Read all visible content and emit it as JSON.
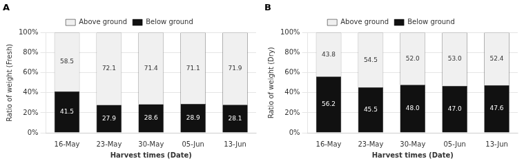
{
  "chart_data": [
    {
      "type": "bar",
      "title": "A",
      "stacked": true,
      "grid": true,
      "legend": "top",
      "data_labels": true,
      "xlabel": "Harvest times (Date)",
      "ylabel": "Ratio of weight (Fresh)",
      "categories": [
        "16-May",
        "23-May",
        "30-May",
        "05-Jun",
        "13-Jun"
      ],
      "ylim": [
        0,
        100
      ],
      "yticks": [
        {
          "value": 0,
          "label": "0%"
        },
        {
          "value": 20,
          "label": "20%"
        },
        {
          "value": 40,
          "label": "40%"
        },
        {
          "value": 60,
          "label": "60%"
        },
        {
          "value": 80,
          "label": "80%"
        },
        {
          "value": 100,
          "label": "100%"
        }
      ],
      "series": [
        {
          "name": "Below ground",
          "color": "#111111",
          "values": [
            41.5,
            27.9,
            28.6,
            28.9,
            28.1
          ],
          "value_labels": [
            "41.5",
            "27.9",
            "28.6",
            "28.9",
            "28.1"
          ]
        },
        {
          "name": "Above ground",
          "color": "#f0f0f0",
          "values": [
            58.5,
            72.1,
            71.4,
            71.1,
            71.9
          ],
          "value_labels": [
            "58.5",
            "72.1",
            "71.4",
            "71.1",
            "71.9"
          ]
        }
      ]
    },
    {
      "type": "bar",
      "title": "B",
      "stacked": true,
      "grid": true,
      "legend": "top",
      "data_labels": true,
      "xlabel": "Harvest times (Date)",
      "ylabel": "Ratio of weight (Dry)",
      "categories": [
        "16-May",
        "23-May",
        "30-May",
        "05-Jun",
        "13-Jun"
      ],
      "ylim": [
        0,
        100
      ],
      "yticks": [
        {
          "value": 0,
          "label": "0%"
        },
        {
          "value": 20,
          "label": "20%"
        },
        {
          "value": 40,
          "label": "40%"
        },
        {
          "value": 60,
          "label": "60%"
        },
        {
          "value": 80,
          "label": "80%"
        },
        {
          "value": 100,
          "label": "100%"
        }
      ],
      "series": [
        {
          "name": "Below ground",
          "color": "#111111",
          "values": [
            56.2,
            45.5,
            48.0,
            47.0,
            47.6
          ],
          "value_labels": [
            "56.2",
            "45.5",
            "48.0",
            "47.0",
            "47.6"
          ]
        },
        {
          "name": "Above ground",
          "color": "#f0f0f0",
          "values": [
            43.8,
            54.5,
            52.0,
            53.0,
            52.4
          ],
          "value_labels": [
            "43.8",
            "54.5",
            "52.0",
            "53.0",
            "52.4"
          ]
        }
      ]
    }
  ]
}
